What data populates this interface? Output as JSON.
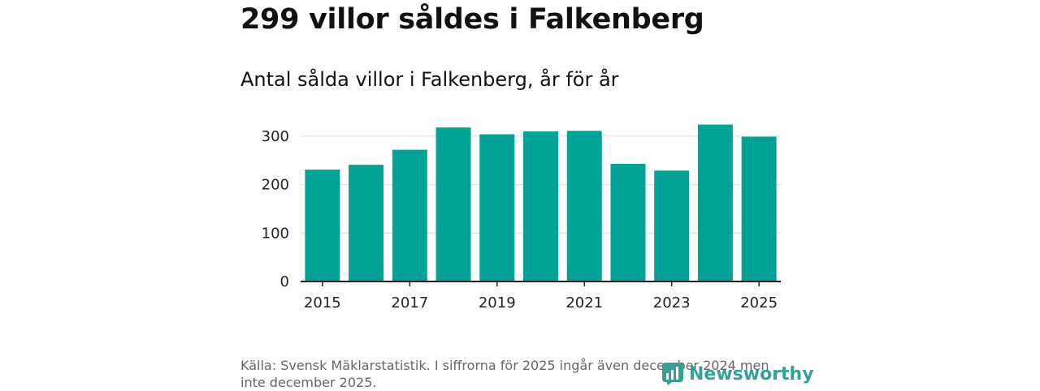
{
  "header": {
    "title": "299 villor såldes i Falkenberg",
    "subtitle": "Antal sålda villor i Falkenberg, år för år"
  },
  "source": "Källa: Svensk Mäklarstatistik. I siffrorna för 2025 ingår även december 2024 men inte december 2025.",
  "brand": {
    "name": "Newsworthy",
    "icon": "newsworthy-logo-icon"
  },
  "colors": {
    "bar": "#00a396",
    "grid": "#d9d9d9",
    "axis": "#222222",
    "brand": "#34a198"
  },
  "chart_data": {
    "type": "bar",
    "title": "Antal sålda villor i Falkenberg, år för år",
    "xlabel": "",
    "ylabel": "",
    "categories": [
      "2015",
      "2016",
      "2017",
      "2018",
      "2019",
      "2020",
      "2021",
      "2022",
      "2023",
      "2024",
      "2025"
    ],
    "values": [
      231,
      241,
      272,
      318,
      304,
      310,
      311,
      243,
      229,
      324,
      299
    ],
    "ylim": [
      0,
      330
    ],
    "yticks": [
      "0",
      "100",
      "200",
      "300"
    ],
    "xticks": [
      "2015",
      "2017",
      "2019",
      "2021",
      "2023",
      "2025"
    ],
    "grid": true
  }
}
